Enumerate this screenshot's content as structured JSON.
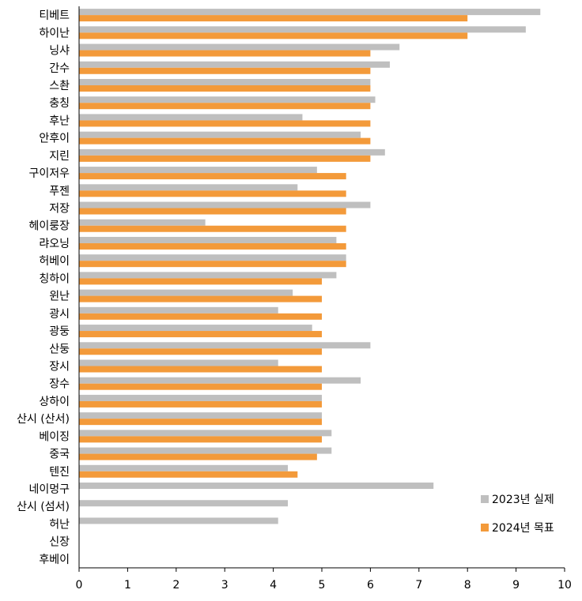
{
  "chart_data": {
    "type": "bar",
    "orientation": "horizontal",
    "categories": [
      "티베트",
      "하이난",
      "닝샤",
      "간수",
      "스촨",
      "충칭",
      "후난",
      "안후이",
      "지린",
      "구이저우",
      "푸젠",
      "저장",
      "헤이룽장",
      "랴오닝",
      "허베이",
      "칭하이",
      "윈난",
      "광시",
      "광둥",
      "산둥",
      "장시",
      "장수",
      "상하이",
      "산시 (산서)",
      "베이징",
      "중국",
      "텐진",
      "네이멍구",
      "산시 (섬서)",
      "허난",
      "신장",
      "후베이"
    ],
    "series": [
      {
        "name": "2023년 실제",
        "color": "#bfbfbf",
        "values": [
          9.5,
          9.2,
          6.6,
          6.4,
          6.0,
          6.1,
          4.6,
          5.8,
          6.3,
          4.9,
          4.5,
          6.0,
          2.6,
          5.3,
          5.5,
          5.3,
          4.4,
          4.1,
          4.8,
          6.0,
          4.1,
          5.8,
          5.0,
          5.0,
          5.2,
          5.2,
          4.3,
          7.3,
          4.3,
          4.1,
          null,
          null
        ]
      },
      {
        "name": "2024년 목표",
        "color": "#f39a3a",
        "values": [
          8.0,
          8.0,
          6.0,
          6.0,
          6.0,
          6.0,
          6.0,
          6.0,
          6.0,
          5.5,
          5.5,
          5.5,
          5.5,
          5.5,
          5.5,
          5.0,
          5.0,
          5.0,
          5.0,
          5.0,
          5.0,
          5.0,
          5.0,
          5.0,
          5.0,
          4.9,
          4.5,
          null,
          null,
          null,
          null,
          null
        ]
      }
    ],
    "xlim": [
      0,
      10
    ],
    "xticks": [
      "0",
      "1",
      "2",
      "3",
      "4",
      "5",
      "6",
      "7",
      "8",
      "9",
      "10"
    ],
    "grid": false,
    "legend_position": "bottom-right"
  }
}
